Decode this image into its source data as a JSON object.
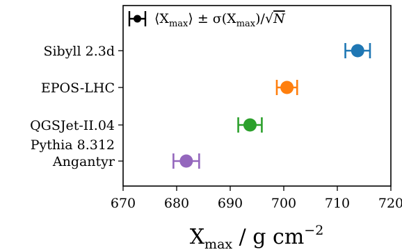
{
  "chart_data": {
    "type": "scatter",
    "title": "",
    "xlabel": "X_max / g cm^-2",
    "xlabel_main": "X",
    "xlabel_sub": "max",
    "xlabel_units": " / g cm",
    "xlabel_exp": "−2",
    "xlim": [
      670,
      720
    ],
    "xticks": [
      "670",
      "680",
      "690",
      "700",
      "710",
      "720"
    ],
    "legend": {
      "position": "top-left",
      "label": "⟨X_max⟩ ± σ(X_max)/√N",
      "parts": {
        "lang": "⟨X",
        "sub1": "max",
        "mid": "⟩ ± σ(X",
        "sub2": "max",
        "close": ")/",
        "sqrt": "√",
        "N": "N"
      },
      "color": "#000000"
    },
    "series": [
      {
        "label_lines": [
          "Sibyll 2.3d"
        ],
        "x": 713.8,
        "err": 2.3,
        "color": "#1f77b4"
      },
      {
        "label_lines": [
          "EPOS-LHC"
        ],
        "x": 700.6,
        "err": 1.9,
        "color": "#ff7f0e"
      },
      {
        "label_lines": [
          "QGSJet-II.04"
        ],
        "x": 693.7,
        "err": 2.2,
        "color": "#2ca02c"
      },
      {
        "label_lines": [
          "Pythia 8.312",
          "Angantyr"
        ],
        "x": 681.8,
        "err": 2.4,
        "color": "#9467bd"
      }
    ]
  }
}
